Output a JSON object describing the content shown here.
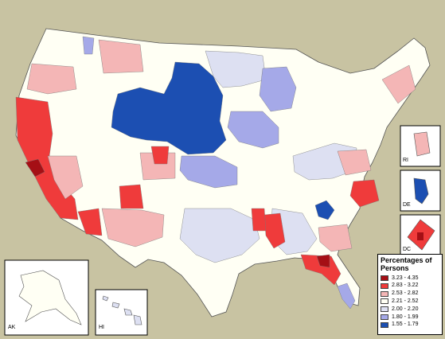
{
  "map": {
    "insets": {
      "alaska": "AK",
      "hawaii": "HI",
      "rhode_island": "RI",
      "delaware": "DE",
      "dc": "DC"
    }
  },
  "legend": {
    "title": "Percentages of Persons",
    "classes": [
      {
        "range": "3.23 - 4.35",
        "color": "#a50f15"
      },
      {
        "range": "2.83 - 3.22",
        "color": "#ef3b3b"
      },
      {
        "range": "2.53 - 2.82",
        "color": "#f4b6b6"
      },
      {
        "range": "2.21 - 2.52",
        "color": "#fffff4"
      },
      {
        "range": "2.00 - 2.20",
        "color": "#dde0f2"
      },
      {
        "range": "1.80 - 1.99",
        "color": "#a5a9e8"
      },
      {
        "range": "1.55 - 1.79",
        "color": "#1c4fb2"
      }
    ]
  }
}
